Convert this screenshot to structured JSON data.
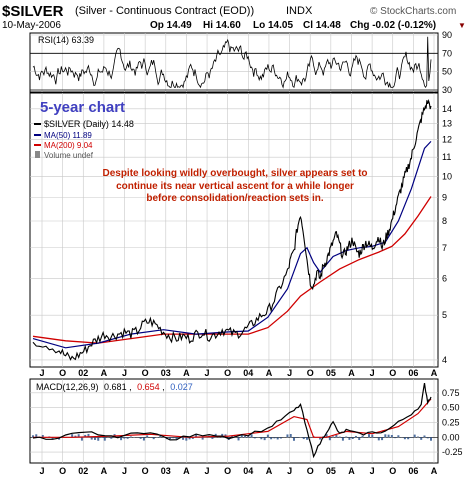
{
  "header": {
    "symbol": "$SILVER",
    "description": "(Silver - Continuous Contract (EOD))",
    "exchange": "INDX",
    "date": "10-May-2006",
    "quote": {
      "op": "Op 14.49",
      "hi": "Hi 14.60",
      "lo": "Lo 14.05",
      "cl": "Cl 14.48",
      "chg": "Chg -0.02 (-0.12%)"
    },
    "brand": "© StockCharts.com"
  },
  "chart_data": [
    {
      "type": "line",
      "panel": "rsi",
      "label": "RSI(14) 63.39",
      "y_ticks": [
        30,
        50,
        70,
        90
      ],
      "ylim": [
        30,
        90
      ],
      "guide_levels": [
        30,
        70
      ],
      "series": [
        {
          "name": "RSI(14)",
          "color": "#000000"
        }
      ]
    },
    {
      "type": "line",
      "panel": "price",
      "title": "5-year chart",
      "scale": "log",
      "ylim": [
        3.9,
        15.0
      ],
      "y_ticks": [
        4,
        5,
        6,
        7,
        8,
        9,
        10,
        11,
        12,
        13,
        14
      ],
      "x_ticks": [
        "J",
        "O",
        "02",
        "A",
        "J",
        "O",
        "03",
        "A",
        "J",
        "O",
        "04",
        "A",
        "J",
        "O",
        "05",
        "A",
        "J",
        "O",
        "06",
        "A"
      ],
      "legend": [
        "$SILVER (Daily) 14.48",
        "MA(50) 11.89",
        "MA(200) 9.04",
        "Volume undef"
      ],
      "annotation": [
        "Despite looking wildly overbought, silver appears set to",
        "continue its near vertical ascent for a while longer",
        "before consolidation/reaction sets in."
      ],
      "price_points": [
        [
          0,
          4.4
        ],
        [
          4,
          4.32
        ],
        [
          8,
          4.2
        ],
        [
          10,
          4.08
        ],
        [
          12,
          4.02
        ],
        [
          14,
          4.1
        ],
        [
          16,
          4.2
        ],
        [
          18,
          4.35
        ],
        [
          20,
          4.45
        ],
        [
          22,
          4.55
        ],
        [
          24,
          4.5
        ],
        [
          26,
          4.55
        ],
        [
          28,
          4.6
        ],
        [
          30,
          4.55
        ],
        [
          32,
          4.62
        ],
        [
          34,
          4.8
        ],
        [
          36,
          4.85
        ],
        [
          38,
          4.75
        ],
        [
          40,
          4.6
        ],
        [
          42,
          4.5
        ],
        [
          44,
          4.45
        ],
        [
          46,
          4.5
        ],
        [
          48,
          4.45
        ],
        [
          50,
          4.55
        ],
        [
          52,
          4.6
        ],
        [
          54,
          4.5
        ],
        [
          56,
          4.55
        ],
        [
          58,
          4.65
        ],
        [
          60,
          4.6
        ],
        [
          62,
          4.55
        ],
        [
          64,
          4.6
        ],
        [
          66,
          4.7
        ],
        [
          68,
          4.85
        ],
        [
          70,
          5.0
        ],
        [
          72,
          5.1
        ],
        [
          74,
          5.4
        ],
        [
          76,
          5.8
        ],
        [
          78,
          6.2
        ],
        [
          79,
          6.6
        ],
        [
          80,
          6.9
        ],
        [
          81,
          7.7
        ],
        [
          82,
          8.3
        ],
        [
          83,
          7.5
        ],
        [
          84,
          6.6
        ],
        [
          85,
          5.9
        ],
        [
          86,
          5.8
        ],
        [
          87,
          6.2
        ],
        [
          88,
          6.0
        ],
        [
          89,
          6.4
        ],
        [
          90,
          6.6
        ],
        [
          91,
          6.9
        ],
        [
          92,
          7.2
        ],
        [
          93,
          7.5
        ],
        [
          94,
          7.1
        ],
        [
          95,
          6.7
        ],
        [
          96,
          6.9
        ],
        [
          97,
          7.1
        ],
        [
          98,
          7.3
        ],
        [
          99,
          6.9
        ],
        [
          100,
          6.8
        ],
        [
          101,
          7.0
        ],
        [
          102,
          7.2
        ],
        [
          103,
          7.1
        ],
        [
          104,
          7.0
        ],
        [
          105,
          7.2
        ],
        [
          106,
          7.4
        ],
        [
          107,
          7.0
        ],
        [
          108,
          7.3
        ],
        [
          109,
          7.6
        ],
        [
          110,
          8.0
        ],
        [
          111,
          8.5
        ],
        [
          112,
          9.0
        ],
        [
          113,
          9.5
        ],
        [
          114,
          10.0
        ],
        [
          115,
          10.5
        ],
        [
          116,
          11.0
        ],
        [
          117,
          11.8
        ],
        [
          118,
          12.5
        ],
        [
          119,
          13.3
        ],
        [
          120,
          14.0
        ],
        [
          121,
          14.5
        ],
        [
          122,
          14.2
        ]
      ],
      "ma50_points": [
        [
          0,
          4.45
        ],
        [
          10,
          4.25
        ],
        [
          20,
          4.35
        ],
        [
          30,
          4.55
        ],
        [
          40,
          4.65
        ],
        [
          50,
          4.55
        ],
        [
          60,
          4.6
        ],
        [
          66,
          4.62
        ],
        [
          72,
          4.95
        ],
        [
          78,
          5.7
        ],
        [
          82,
          6.8
        ],
        [
          84,
          7.0
        ],
        [
          86,
          6.5
        ],
        [
          88,
          6.2
        ],
        [
          92,
          6.7
        ],
        [
          96,
          6.9
        ],
        [
          100,
          7.0
        ],
        [
          104,
          7.05
        ],
        [
          108,
          7.2
        ],
        [
          112,
          8.0
        ],
        [
          116,
          9.4
        ],
        [
          120,
          11.5
        ],
        [
          122,
          11.9
        ]
      ],
      "ma200_points": [
        [
          0,
          4.5
        ],
        [
          10,
          4.4
        ],
        [
          20,
          4.35
        ],
        [
          30,
          4.45
        ],
        [
          40,
          4.55
        ],
        [
          50,
          4.55
        ],
        [
          60,
          4.55
        ],
        [
          66,
          4.55
        ],
        [
          72,
          4.7
        ],
        [
          78,
          5.1
        ],
        [
          82,
          5.5
        ],
        [
          88,
          5.9
        ],
        [
          94,
          6.3
        ],
        [
          100,
          6.6
        ],
        [
          106,
          6.85
        ],
        [
          110,
          7.05
        ],
        [
          114,
          7.5
        ],
        [
          118,
          8.2
        ],
        [
          122,
          9.04
        ]
      ]
    },
    {
      "type": "line",
      "panel": "macd",
      "label_prefix": "MACD(12,26,9)",
      "macd_value": "0.681",
      "signal_value": "0.654",
      "hist_value": "0.027",
      "y_ticks": [
        "0.75",
        "0.50",
        "0.25",
        "0.00",
        "-0.25"
      ],
      "ylim": [
        -0.4,
        0.95
      ],
      "x_ticks": [
        "J",
        "O",
        "02",
        "A",
        "J",
        "O",
        "03",
        "A",
        "J",
        "O",
        "04",
        "A",
        "J",
        "O",
        "05",
        "A",
        "J",
        "O",
        "06",
        "A"
      ],
      "macd_points": [
        [
          0,
          0.0
        ],
        [
          6,
          -0.05
        ],
        [
          12,
          0.05
        ],
        [
          18,
          0.08
        ],
        [
          24,
          0.0
        ],
        [
          30,
          0.05
        ],
        [
          36,
          0.1
        ],
        [
          42,
          -0.05
        ],
        [
          48,
          0.02
        ],
        [
          54,
          0.06
        ],
        [
          60,
          0.0
        ],
        [
          66,
          0.05
        ],
        [
          72,
          0.15
        ],
        [
          76,
          0.3
        ],
        [
          80,
          0.45
        ],
        [
          82,
          0.55
        ],
        [
          84,
          0.1
        ],
        [
          86,
          -0.3
        ],
        [
          88,
          -0.1
        ],
        [
          90,
          0.1
        ],
        [
          92,
          0.25
        ],
        [
          94,
          0.05
        ],
        [
          96,
          0.12
        ],
        [
          100,
          0.05
        ],
        [
          104,
          0.08
        ],
        [
          108,
          0.1
        ],
        [
          112,
          0.25
        ],
        [
          116,
          0.4
        ],
        [
          119,
          0.55
        ],
        [
          120,
          0.9
        ],
        [
          121,
          0.6
        ],
        [
          122,
          0.68
        ]
      ],
      "signal_points": [
        [
          0,
          0.0
        ],
        [
          12,
          0.0
        ],
        [
          24,
          0.02
        ],
        [
          36,
          0.05
        ],
        [
          48,
          0.0
        ],
        [
          60,
          0.02
        ],
        [
          72,
          0.1
        ],
        [
          80,
          0.35
        ],
        [
          84,
          0.3
        ],
        [
          86,
          0.0
        ],
        [
          90,
          0.0
        ],
        [
          96,
          0.1
        ],
        [
          104,
          0.06
        ],
        [
          112,
          0.18
        ],
        [
          118,
          0.4
        ],
        [
          122,
          0.65
        ]
      ]
    }
  ],
  "colors": {
    "title_blue": "#4040c0",
    "annotation_red": "#c02000",
    "ma50": "#000080",
    "ma200": "#d00000",
    "grid": "#c8c8c8",
    "hist": "#5070a0"
  }
}
